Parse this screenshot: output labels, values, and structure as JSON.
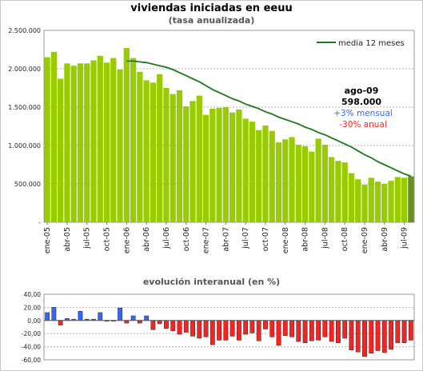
{
  "title": "viviendas iniciadas en eeuu",
  "subtitle": "(tasa anualizada)",
  "title2": "evolución interanual (en %)",
  "colors": {
    "bar": "#99cc00",
    "bar_last": "#6b8e23",
    "line": "#1a7a1a",
    "blue": "#3366ff",
    "red": "#ff2020"
  },
  "chart_data": [
    {
      "type": "bar",
      "series": [
        {
          "name": "viviendas iniciadas",
          "values": [
            2150,
            2220,
            1870,
            2070,
            2040,
            2070,
            2070,
            2110,
            2170,
            2080,
            2140,
            1990,
            2270,
            2140,
            1960,
            1850,
            1820,
            1930,
            1750,
            1670,
            1720,
            1510,
            1580,
            1650,
            1400,
            1480,
            1490,
            1500,
            1430,
            1470,
            1350,
            1310,
            1200,
            1260,
            1190,
            1040,
            1080,
            1110,
            1010,
            990,
            920,
            1090,
            1010,
            850,
            800,
            780,
            640,
            560,
            490,
            580,
            530,
            500,
            540,
            590,
            580,
            598
          ]
        },
        {
          "name": "media 12 meses",
          "values": [
            null,
            null,
            null,
            null,
            null,
            null,
            null,
            null,
            null,
            null,
            null,
            null,
            2100,
            2100,
            2090,
            2080,
            2060,
            2040,
            2020,
            1990,
            1950,
            1910,
            1870,
            1830,
            1780,
            1730,
            1690,
            1650,
            1610,
            1580,
            1540,
            1510,
            1480,
            1440,
            1410,
            1370,
            1340,
            1310,
            1280,
            1240,
            1210,
            1170,
            1140,
            1100,
            1060,
            1020,
            980,
            930,
            880,
            840,
            790,
            750,
            710,
            670,
            630,
            600
          ]
        }
      ],
      "ylim": [
        0,
        2500000
      ],
      "yticks": [
        "-",
        "500.000",
        "1.000.000",
        "1.500.000",
        "2.000.000",
        "2.500.000"
      ],
      "xticks": [
        "ene-05",
        "abr-05",
        "jul-05",
        "oct-05",
        "ene-06",
        "abr-06",
        "jul-06",
        "oct-06",
        "ene-07",
        "abr-07",
        "jul-07",
        "oct-07",
        "ene-08",
        "abr-08",
        "jul-08",
        "oct-08",
        "ene-09",
        "abr-09",
        "jul-09"
      ],
      "legend": "media 12 meses",
      "legend_position": "top-right",
      "annotation": [
        "ago-09",
        "598.000",
        "+3% mensual",
        "-30% anual"
      ],
      "grid": true
    },
    {
      "type": "bar",
      "values": [
        12,
        20,
        -7,
        3,
        2,
        14,
        2,
        2,
        12,
        -1,
        0,
        19,
        -4,
        7,
        -4,
        7,
        -14,
        -5,
        -12,
        -16,
        -21,
        -18,
        -24,
        -27,
        -25,
        -37,
        -30,
        -30,
        -24,
        -30,
        -21,
        -19,
        -31,
        -13,
        -25,
        -38,
        -23,
        -25,
        -32,
        -34,
        -31,
        -30,
        -25,
        -32,
        -34,
        -27,
        -45,
        -48,
        -55,
        -50,
        -46,
        -49,
        -44,
        -34,
        -34,
        -30
      ],
      "ylim": [
        -60,
        40
      ],
      "yticks": [
        "-60,00",
        "-40,00",
        "-20,00",
        "0,00",
        "20,00",
        "40,00"
      ],
      "grid": true
    }
  ]
}
